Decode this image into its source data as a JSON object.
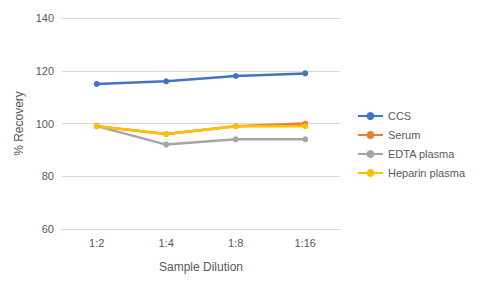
{
  "chart_data": {
    "type": "line",
    "x_label": "Sample Dilution",
    "y_label": "% Recovery",
    "categories": [
      "1:2",
      "1:4",
      "1:8",
      "1:16"
    ],
    "series": [
      {
        "name": "CCS",
        "color": "#4472c4",
        "values": [
          115,
          116,
          118,
          119
        ]
      },
      {
        "name": "Serum",
        "color": "#ed7d31",
        "values": [
          99,
          96,
          99,
          100
        ]
      },
      {
        "name": "EDTA plasma",
        "color": "#a5a5a5",
        "values": [
          99,
          92,
          94,
          94
        ]
      },
      {
        "name": "Heparin plasma",
        "color": "#ffc000",
        "values": [
          99,
          96,
          99,
          99
        ]
      }
    ],
    "ylim": [
      60,
      140
    ],
    "yticks": [
      60,
      80,
      100,
      120,
      140
    ],
    "grid": true,
    "legend": "right",
    "marker": "circle"
  }
}
